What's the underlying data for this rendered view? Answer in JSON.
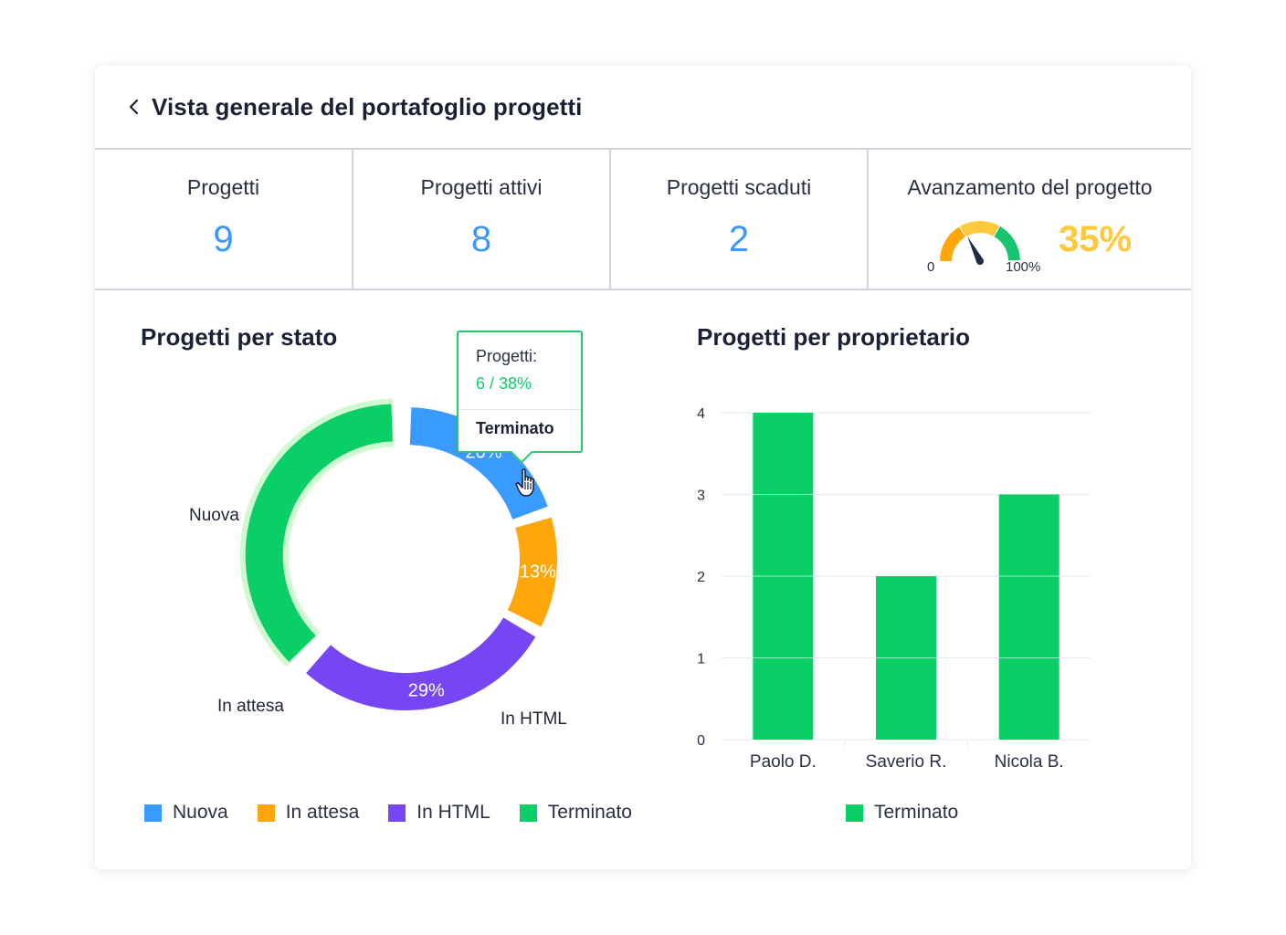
{
  "page": {
    "title": "Vista generale del portafoglio progetti"
  },
  "kpis": [
    {
      "label": "Progetti",
      "value": "9"
    },
    {
      "label": "Progetti attivi",
      "value": "8"
    },
    {
      "label": "Progetti scaduti",
      "value": "2"
    }
  ],
  "progress": {
    "label": "Avanzamento del progetto",
    "value_text": "35%",
    "value": 35,
    "min_label": "0",
    "max_label": "100%",
    "colors": {
      "low": "#ffa60a",
      "mid": "#ffc93c",
      "high": "#18c46f",
      "needle": "#1f2a44",
      "value": "#ffc93c"
    }
  },
  "status_chart": {
    "title": "Progetti per stato",
    "tooltip": {
      "label": "Progetti:",
      "value": "6 / 38%",
      "name": "Terminato"
    },
    "chart_data": {
      "type": "pie",
      "donut": true,
      "slices": [
        {
          "name": "Nuova",
          "percent": 20,
          "percent_label": "20%",
          "color": "#3a9bff"
        },
        {
          "name": "In attesa",
          "percent": 13,
          "percent_label": "13%",
          "color": "#ffa60a"
        },
        {
          "name": "In HTML",
          "percent": 29,
          "percent_label": "29%",
          "color": "#7646f2"
        },
        {
          "name": "Terminato",
          "percent": 38,
          "percent_label": "",
          "color": "#0acf66",
          "highlighted": true
        }
      ],
      "legend_position": "bottom"
    }
  },
  "owner_chart": {
    "title": "Progetti per proprietario",
    "chart_data": {
      "type": "bar",
      "categories": [
        "Paolo D.",
        "Saverio R.",
        "Nicola B."
      ],
      "series": [
        {
          "name": "Terminato",
          "values": [
            4,
            2,
            3
          ],
          "color": "#0acf66"
        }
      ],
      "yticks": [
        "0",
        "1",
        "2",
        "3",
        "4"
      ],
      "ylim": [
        0,
        4
      ],
      "grid": true,
      "legend_position": "bottom"
    }
  }
}
